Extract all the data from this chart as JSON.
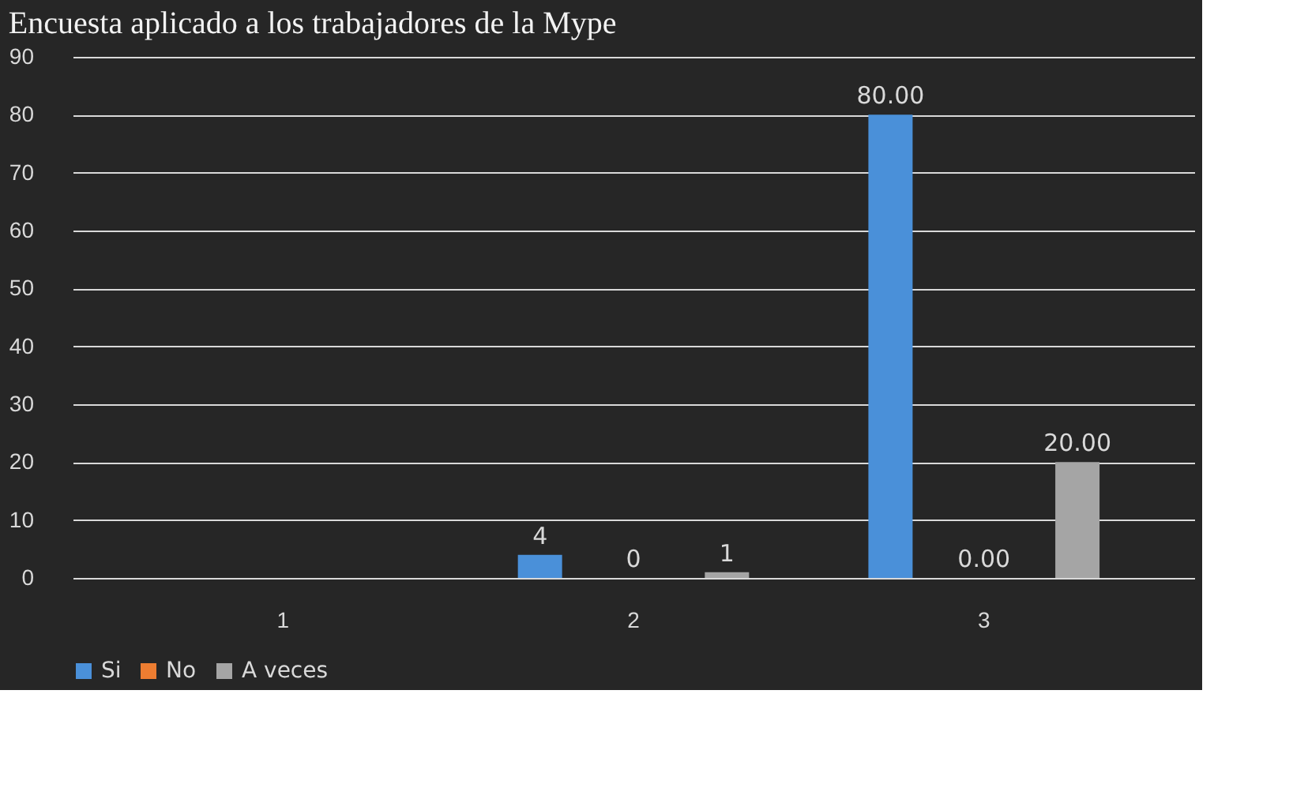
{
  "chart_data": {
    "type": "bar",
    "title": "Encuesta aplicado a los trabajadores de la Mype",
    "categories": [
      "1",
      "2",
      "3"
    ],
    "series": [
      {
        "name": "Si",
        "color": "#4a90d9",
        "values": [
          null,
          4,
          80
        ],
        "value_labels": [
          null,
          "4",
          "80.00"
        ]
      },
      {
        "name": "No",
        "color": "#ed7d31",
        "values": [
          null,
          0,
          0
        ],
        "value_labels": [
          null,
          "0",
          "0.00"
        ]
      },
      {
        "name": "A veces",
        "color": "#a5a5a5",
        "values": [
          null,
          1,
          20
        ],
        "value_labels": [
          null,
          "1",
          "20.00"
        ]
      }
    ],
    "ylim": [
      0,
      90
    ],
    "yticks": [
      0,
      10,
      20,
      30,
      40,
      50,
      60,
      70,
      80,
      90
    ],
    "grid": "y",
    "legend": "bottom"
  }
}
